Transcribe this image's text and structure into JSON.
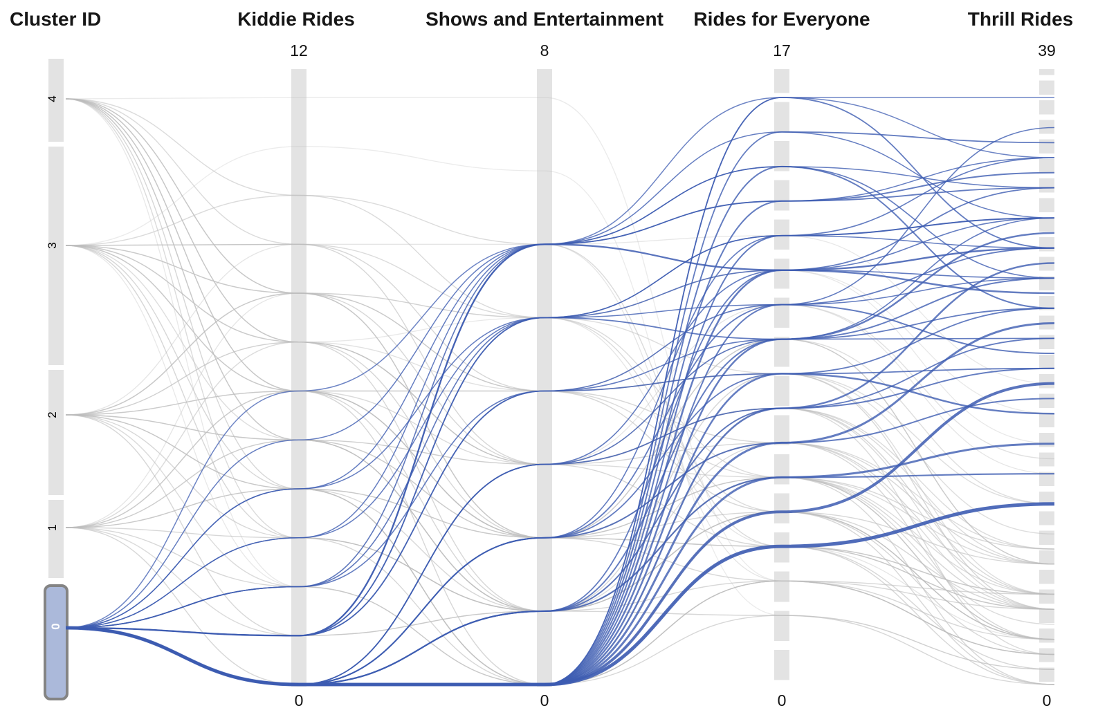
{
  "chart_data": {
    "type": "parallel-coordinates",
    "title": "",
    "axes": [
      {
        "label": "Cluster ID",
        "kind": "category",
        "categories": [
          "4",
          "3",
          "2",
          "1",
          "0"
        ],
        "selected_category": "0"
      },
      {
        "label": "Kiddie Rides",
        "kind": "numeric",
        "min": 0,
        "max": 12,
        "max_label": "12",
        "min_label": "0"
      },
      {
        "label": "Shows and Entertainment",
        "kind": "numeric",
        "min": 0,
        "max": 8,
        "max_label": "8",
        "min_label": "0"
      },
      {
        "label": "Rides for Everyone",
        "kind": "numeric",
        "min": 0,
        "max": 17,
        "max_label": "17",
        "min_label": "0"
      },
      {
        "label": "Thrill Rides",
        "kind": "numeric",
        "min": 0,
        "max": 39,
        "max_label": "39",
        "min_label": "0"
      }
    ],
    "colors": {
      "selected_line": "#3d5cb2",
      "unselected_line": "#bdbdbd",
      "axis_bar": "#e3e3e3",
      "selection_fill": "#abb9da",
      "selection_border": "#848484",
      "header_text": "#161616"
    },
    "legend": "none",
    "grid": "off",
    "record_fields": [
      "cluster",
      "kiddie",
      "shows",
      "everyone",
      "thrill",
      "width",
      "opacity"
    ],
    "records": [
      [
        4,
        12,
        8,
        3,
        2,
        1.4,
        0.3
      ],
      [
        4,
        10,
        6,
        4,
        6,
        1.4,
        0.55
      ],
      [
        4,
        9,
        5,
        6,
        4,
        1.4,
        0.55
      ],
      [
        4,
        8,
        4,
        5,
        8,
        1.4,
        0.6
      ],
      [
        4,
        8,
        3,
        7,
        3,
        1.4,
        0.6
      ],
      [
        4,
        7,
        3,
        8,
        6,
        1.4,
        0.6
      ],
      [
        4,
        7,
        2,
        4,
        1,
        1.4,
        0.6
      ],
      [
        4,
        6,
        2,
        6,
        9,
        1.4,
        0.6
      ],
      [
        4,
        6,
        1,
        9,
        5,
        1.4,
        0.6
      ],
      [
        4,
        5,
        1,
        5,
        0,
        1.4,
        0.6
      ],
      [
        4,
        5,
        2,
        10,
        8,
        1.4,
        0.55
      ],
      [
        4,
        4,
        0,
        3,
        3,
        1.4,
        0.6
      ],
      [
        4,
        3,
        1,
        7,
        5,
        1.4,
        0.55
      ],
      [
        4,
        2,
        5,
        12,
        18,
        1.3,
        0.35
      ],
      [
        3,
        11,
        7,
        2,
        1,
        1.3,
        0.3
      ],
      [
        3,
        10,
        5,
        5,
        3,
        1.4,
        0.55
      ],
      [
        3,
        9,
        4,
        7,
        8,
        1.4,
        0.6
      ],
      [
        3,
        9,
        3,
        4,
        5,
        1.4,
        0.6
      ],
      [
        3,
        8,
        2,
        6,
        0,
        1.4,
        0.6
      ],
      [
        3,
        8,
        5,
        9,
        10,
        1.4,
        0.5
      ],
      [
        3,
        7,
        1,
        3,
        6,
        1.4,
        0.6
      ],
      [
        3,
        7,
        4,
        11,
        15,
        1.4,
        0.45
      ],
      [
        3,
        6,
        0,
        5,
        2,
        1.4,
        0.6
      ],
      [
        3,
        6,
        3,
        8,
        8,
        1.4,
        0.55
      ],
      [
        3,
        5,
        2,
        10,
        12,
        1.4,
        0.5
      ],
      [
        3,
        4,
        1,
        6,
        3,
        1.4,
        0.6
      ],
      [
        3,
        3,
        0,
        4,
        5,
        1.4,
        0.6
      ],
      [
        3,
        2,
        6,
        13,
        20,
        1.3,
        0.35
      ],
      [
        2,
        9,
        6,
        3,
        2,
        1.3,
        0.4
      ],
      [
        2,
        8,
        4,
        6,
        6,
        1.4,
        0.55
      ],
      [
        2,
        8,
        2,
        5,
        3,
        1.4,
        0.6
      ],
      [
        2,
        7,
        3,
        8,
        9,
        1.4,
        0.55
      ],
      [
        2,
        6,
        2,
        4,
        0,
        1.4,
        0.6
      ],
      [
        2,
        6,
        4,
        9,
        12,
        1.4,
        0.5
      ],
      [
        2,
        5,
        1,
        6,
        5,
        1.4,
        0.6
      ],
      [
        2,
        5,
        3,
        10,
        8,
        1.4,
        0.55
      ],
      [
        2,
        4,
        0,
        3,
        2,
        1.4,
        0.6
      ],
      [
        2,
        4,
        2,
        7,
        6,
        1.4,
        0.6
      ],
      [
        2,
        3,
        1,
        5,
        3,
        1.4,
        0.6
      ],
      [
        2,
        2,
        0,
        8,
        5,
        1.4,
        0.55
      ],
      [
        2,
        1,
        1,
        2,
        1,
        1.4,
        0.6
      ],
      [
        2,
        7,
        5,
        12,
        16,
        1.3,
        0.35
      ],
      [
        1,
        8,
        5,
        4,
        3,
        1.3,
        0.4
      ],
      [
        1,
        7,
        3,
        6,
        8,
        1.4,
        0.55
      ],
      [
        1,
        6,
        2,
        3,
        2,
        1.4,
        0.6
      ],
      [
        1,
        6,
        4,
        9,
        6,
        1.4,
        0.5
      ],
      [
        1,
        5,
        1,
        5,
        5,
        1.4,
        0.6
      ],
      [
        1,
        4,
        2,
        7,
        9,
        1.4,
        0.55
      ],
      [
        1,
        4,
        0,
        2,
        0,
        1.4,
        0.6
      ],
      [
        1,
        3,
        1,
        6,
        3,
        1.4,
        0.6
      ],
      [
        1,
        2,
        0,
        4,
        6,
        1.4,
        0.6
      ],
      [
        1,
        1,
        1,
        8,
        2,
        1.4,
        0.55
      ],
      [
        1,
        0,
        0,
        3,
        5,
        1.4,
        0.6
      ],
      [
        1,
        5,
        3,
        11,
        14,
        1.3,
        0.4
      ],
      [
        0,
        0,
        0,
        4,
        12,
        5,
        0.9
      ],
      [
        0,
        0,
        0,
        5,
        20,
        4,
        0.85
      ],
      [
        0,
        0,
        0,
        6,
        16,
        3,
        0.8
      ],
      [
        0,
        0,
        0,
        7,
        24,
        3,
        0.8
      ],
      [
        0,
        0,
        0,
        8,
        28,
        2.5,
        0.8
      ],
      [
        0,
        0,
        0,
        9,
        18,
        2.5,
        0.8
      ],
      [
        0,
        0,
        0,
        10,
        30,
        2.5,
        0.8
      ],
      [
        0,
        0,
        0,
        11,
        22,
        2,
        0.8
      ],
      [
        0,
        0,
        0,
        12,
        26,
        2.5,
        0.8
      ],
      [
        0,
        0,
        0,
        13,
        31,
        2,
        0.8
      ],
      [
        0,
        0,
        0,
        14,
        34,
        2,
        0.8
      ],
      [
        0,
        0,
        0,
        15,
        25,
        2,
        0.8
      ],
      [
        0,
        0,
        0,
        16,
        36,
        1.8,
        0.8
      ],
      [
        0,
        0,
        0,
        17,
        29,
        1.8,
        0.8
      ],
      [
        0,
        0,
        0,
        17,
        39,
        1.6,
        0.75
      ],
      [
        0,
        0,
        1,
        6,
        14,
        2.2,
        0.8
      ],
      [
        0,
        0,
        1,
        8,
        21,
        2,
        0.8
      ],
      [
        0,
        0,
        1,
        10,
        27,
        2,
        0.8
      ],
      [
        0,
        0,
        1,
        12,
        33,
        1.8,
        0.8
      ],
      [
        0,
        0,
        2,
        7,
        19,
        2,
        0.8
      ],
      [
        0,
        0,
        2,
        9,
        25,
        1.8,
        0.8
      ],
      [
        0,
        0,
        2,
        11,
        29,
        1.8,
        0.8
      ],
      [
        0,
        0,
        2,
        13,
        35,
        1.6,
        0.8
      ],
      [
        0,
        0,
        3,
        8,
        23,
        1.8,
        0.8
      ],
      [
        0,
        0,
        3,
        10,
        31,
        1.6,
        0.8
      ],
      [
        0,
        0,
        3,
        12,
        27,
        1.6,
        0.8
      ],
      [
        0,
        1,
        4,
        9,
        21,
        1.8,
        0.8
      ],
      [
        0,
        1,
        4,
        11,
        37,
        1.6,
        0.8
      ],
      [
        0,
        1,
        5,
        10,
        25,
        1.8,
        0.8
      ],
      [
        0,
        1,
        5,
        13,
        31,
        1.6,
        0.8
      ],
      [
        0,
        1,
        6,
        12,
        29,
        2.4,
        0.85
      ],
      [
        0,
        1,
        6,
        14,
        33,
        1.8,
        0.8
      ],
      [
        0,
        2,
        6,
        15,
        27,
        1.6,
        0.8
      ],
      [
        0,
        2,
        4,
        10,
        23,
        1.6,
        0.8
      ],
      [
        0,
        2,
        5,
        12,
        31,
        1.6,
        0.8
      ],
      [
        0,
        3,
        6,
        14,
        35,
        1.5,
        0.8
      ],
      [
        0,
        3,
        5,
        11,
        27,
        1.5,
        0.8
      ],
      [
        0,
        4,
        6,
        15,
        33,
        1.5,
        0.8
      ],
      [
        0,
        4,
        5,
        13,
        29,
        1.5,
        0.8
      ],
      [
        0,
        5,
        6,
        16,
        31,
        1.5,
        0.8
      ],
      [
        0,
        6,
        6,
        17,
        35,
        1.5,
        0.75
      ]
    ]
  }
}
